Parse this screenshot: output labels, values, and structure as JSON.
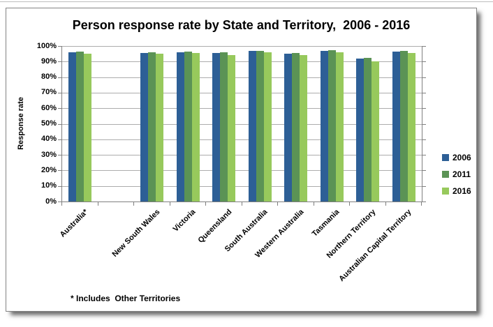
{
  "chart_data": {
    "type": "bar",
    "title": "Person response rate by State and Territory,  2006 - 2016",
    "xlabel": "",
    "ylabel": "Response rate",
    "ylim": [
      0,
      100
    ],
    "y_tick_step": 10,
    "y_tick_labels": [
      "100%",
      "90%",
      "80%",
      "70%",
      "60%",
      "50%",
      "40%",
      "30%",
      "20%",
      "10%",
      "0%"
    ],
    "grid": true,
    "legend_position": "right",
    "categories": [
      "Australia*",
      "",
      "New South Wales",
      "Victoria",
      "Queensland",
      "South Australia",
      "Western Australia",
      "Tasmania",
      "Northern Territory",
      "Australian Capital Territory"
    ],
    "series": [
      {
        "name": "2006",
        "color": "#2D5F96",
        "values": [
          95.8,
          null,
          95.5,
          96.1,
          95.6,
          96.8,
          95.1,
          96.9,
          92.0,
          96.4
        ]
      },
      {
        "name": "2011",
        "color": "#5B9355",
        "values": [
          96.4,
          null,
          96.2,
          96.6,
          96.1,
          97.1,
          95.7,
          97.3,
          92.4,
          96.9
        ]
      },
      {
        "name": "2016",
        "color": "#97C95C",
        "values": [
          95.1,
          null,
          94.9,
          95.4,
          94.3,
          96.2,
          94.0,
          95.9,
          90.1,
          95.7
        ]
      }
    ],
    "annotation": "* Includes  Other Territories"
  },
  "colors": {
    "gridline": "#ACACAC",
    "axis": "#7F7F7F",
    "text": "#000000",
    "frame_border": "#848484"
  }
}
